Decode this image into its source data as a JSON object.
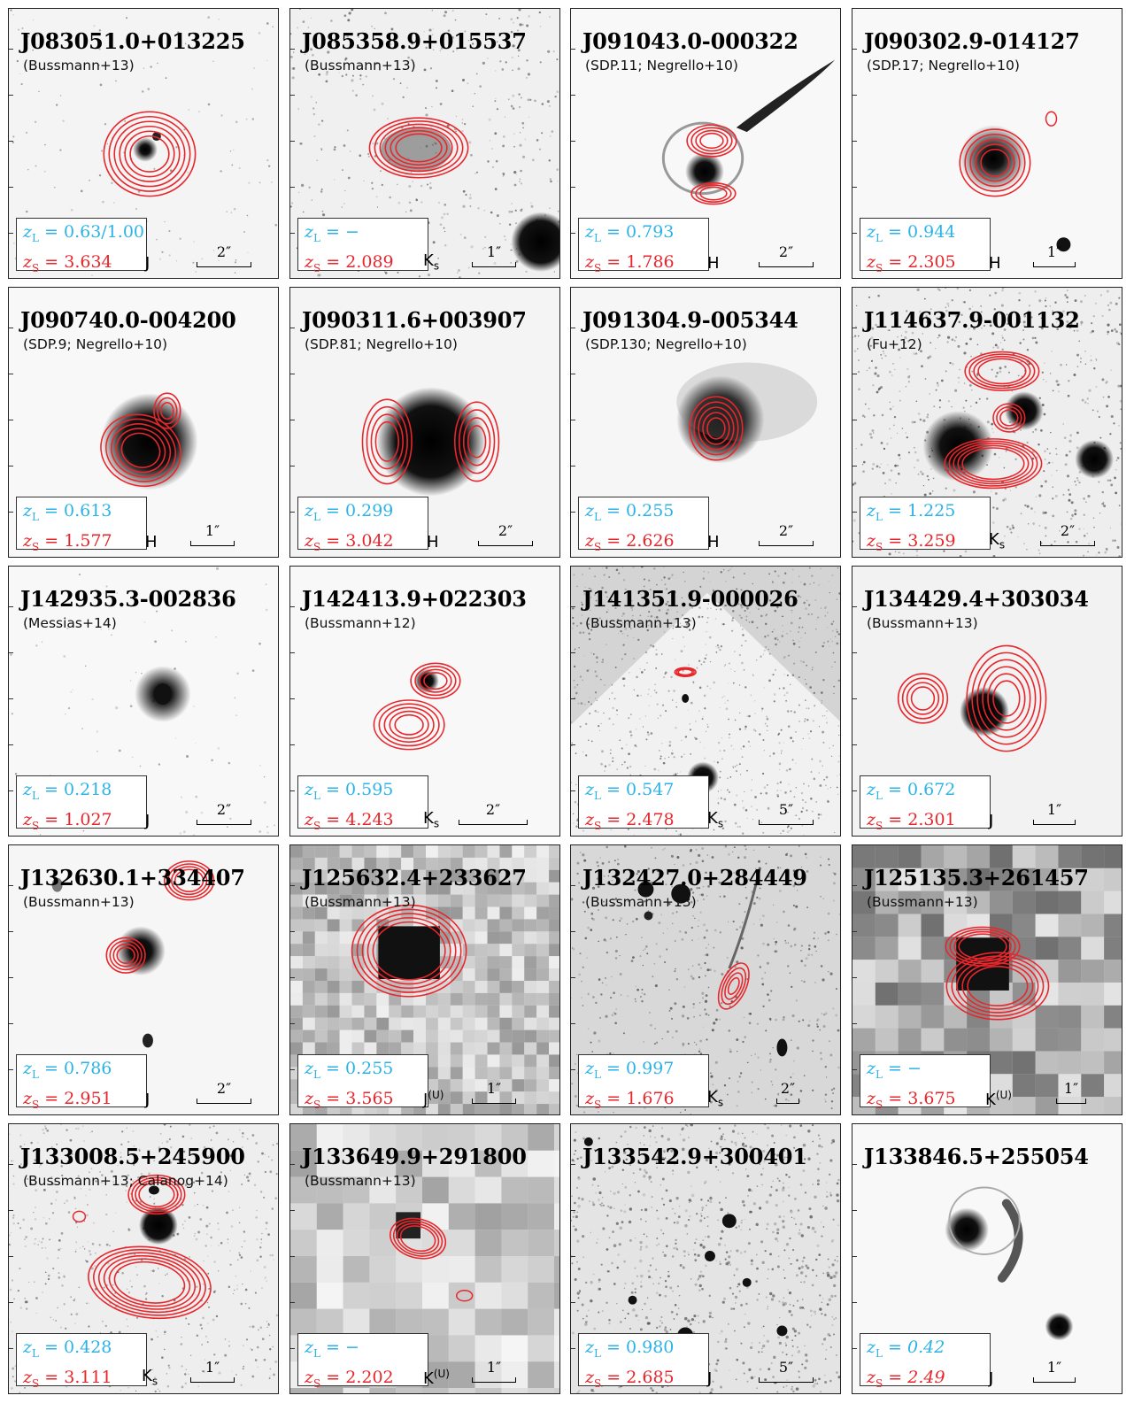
{
  "panels": [
    {
      "name": "J083051.0+013225",
      "ref": "(Bussmann+13)",
      "zl": "0.63/1.00",
      "zs": "3.634",
      "band": "J",
      "scale": "2″",
      "bg": "#f4f4f4"
    },
    {
      "name": "J085358.9+015537",
      "ref": "(Bussmann+13)",
      "zl": "−",
      "zs": "2.089",
      "band": "K<sub>s</sub>",
      "scale": "1″",
      "bg": "#f0f0f0"
    },
    {
      "name": "J091043.0-000322",
      "ref": "(SDP.11; Negrello+10)",
      "zl": "0.793",
      "zs": "1.786",
      "band": "H",
      "scale": "2″",
      "bg": "#f8f8f8"
    },
    {
      "name": "J090302.9-014127",
      "ref": "(SDP.17; Negrello+10)",
      "zl": "0.944",
      "zs": "2.305",
      "band": "H",
      "scale": "1″",
      "bg": "#f8f8f8"
    },
    {
      "name": "J090740.0-004200",
      "ref": "(SDP.9; Negrello+10)",
      "zl": "0.613",
      "zs": "1.577",
      "band": "H",
      "scale": "1″",
      "bg": "#f8f8f8"
    },
    {
      "name": "J090311.6+003907",
      "ref": "(SDP.81; Negrello+10)",
      "zl": "0.299",
      "zs": "3.042",
      "band": "H",
      "scale": "2″",
      "bg": "#f4f4f4"
    },
    {
      "name": "J091304.9-005344",
      "ref": "(SDP.130; Negrello+10)",
      "zl": "0.255",
      "zs": "2.626",
      "band": "H",
      "scale": "2″",
      "bg": "#f6f6f6"
    },
    {
      "name": "J114637.9-001132",
      "ref": "(Fu+12)",
      "zl": "1.225",
      "zs": "3.259",
      "band": "K<sub>s</sub>",
      "scale": "2″",
      "bg": "#eeeeee"
    },
    {
      "name": "J142935.3-002836",
      "ref": "(Messias+14)",
      "zl": "0.218",
      "zs": "1.027",
      "band": "J",
      "scale": "2″",
      "bg": "#f8f8f8"
    },
    {
      "name": "J142413.9+022303",
      "ref": "(Bussmann+12)",
      "zl": "0.595",
      "zs": "4.243",
      "band": "K<sub>s</sub>",
      "scale": "2″",
      "bg": "#f8f8f8"
    },
    {
      "name": "J141351.9-000026",
      "ref": "(Bussmann+13)",
      "zl": "0.547",
      "zs": "2.478",
      "band": "K<sub>s</sub>",
      "scale": "5″",
      "bg": "#d4d4d4"
    },
    {
      "name": "J134429.4+303034",
      "ref": "(Bussmann+13)",
      "zl": "0.672",
      "zs": "2.301",
      "band": "J",
      "scale": "1″",
      "bg": "#f2f2f2"
    },
    {
      "name": "J132630.1+334407",
      "ref": "(Bussmann+13)",
      "zl": "0.786",
      "zs": "2.951",
      "band": "J",
      "scale": "2″",
      "bg": "#f6f6f6"
    },
    {
      "name": "J125632.4+233627",
      "ref": "(Bussmann+13)",
      "zl": "0.255",
      "zs": "3.565",
      "band": "J<sup>(U)</sup>",
      "scale": "1″",
      "bg": "#e4e4e4"
    },
    {
      "name": "J132427.0+284449",
      "ref": "(Bussmann+13)",
      "zl": "0.997",
      "zs": "1.676",
      "band": "K<sub>s</sub>",
      "scale": "2″",
      "bg": "#d8d8d8"
    },
    {
      "name": "J125135.3+261457",
      "ref": "(Bussmann+13)",
      "zl": "−",
      "zs": "3.675",
      "band": "K<sup>(U)</sup>",
      "scale": "1″",
      "bg": "#cfcfcf"
    },
    {
      "name": "J133008.5+245900",
      "ref": "(Bussmann+13; Calanog+14)",
      "zl": "0.428",
      "zs": "3.111",
      "band": "K<sub>s</sub>",
      "scale": "1″",
      "bg": "#eeeeee"
    },
    {
      "name": "J133649.9+291800",
      "ref": "(Bussmann+13)",
      "zl": "−",
      "zs": "2.202",
      "band": "K<sup>(U)</sup>",
      "scale": "1″",
      "bg": "#e2e2e2"
    },
    {
      "name": "J133542.9+300401",
      "ref": "",
      "zl": "0.980",
      "zs": "2.685",
      "band": "J",
      "scale": "5″",
      "bg": "#e4e4e4"
    },
    {
      "name": "J133846.5+255054",
      "ref": "",
      "zl": "0.42",
      "zs": "2.49",
      "band": "J",
      "scale": "1″",
      "bg": "#f8f8f8",
      "italic": true
    }
  ],
  "labels": {
    "zl_prefix": "z",
    "zl_sub": "L",
    "zs_prefix": "z",
    "zs_sub": "S",
    "eq": " = "
  },
  "colors": {
    "lens_redshift": "#2bb3e8",
    "source_redshift": "#e8262b",
    "contours": "#e8262b"
  }
}
